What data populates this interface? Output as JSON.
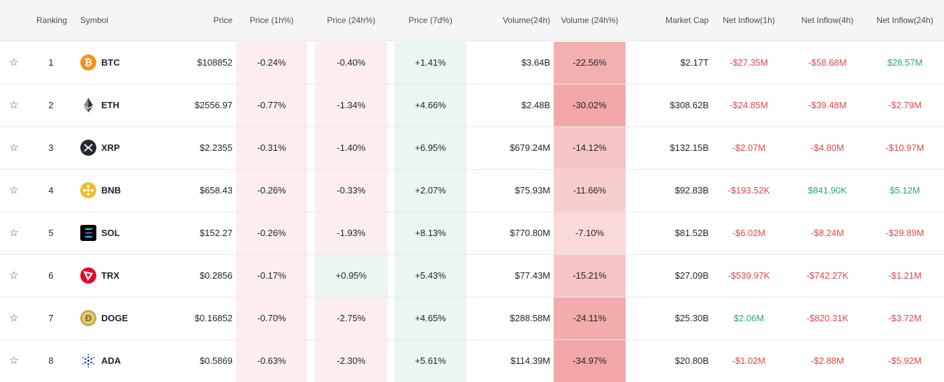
{
  "header": {
    "ranking": "Ranking",
    "symbol": "Symbol",
    "price": "Price",
    "price_1h": "Price (1h%)",
    "price_24h": "Price (24h%)",
    "price_7d": "Price (7d%)",
    "volume": "Volume(24h)",
    "volume_pct": "Volume (24h%)",
    "market_cap": "Market Cap",
    "inflow_1h": "Net Inflow(1h)",
    "inflow_4h": "Net Inflow(4h)",
    "inflow_24h": "Net Inflow(24h)"
  },
  "colors": {
    "red_text": "#e0464c",
    "green_text": "#22a884",
    "light_red_bg": "#fdeeee",
    "light_green_bg": "#eaf6ef",
    "deep_red_bg": "#f7c9c9"
  },
  "rows": [
    {
      "rank": "1",
      "symbol": "BTC",
      "icon": "bitcoin-icon",
      "price": "$108852",
      "p1h": "-0.24%",
      "p24h": "-0.40%",
      "p7d": "+1.41%",
      "volume": "$3.64B",
      "vol_pct": "-22.56%",
      "mcap": "$2.17T",
      "in1h": "-$27.35M",
      "in4h": "-$58.68M",
      "in24h": "$28.57M"
    },
    {
      "rank": "2",
      "symbol": "ETH",
      "icon": "ethereum-icon",
      "price": "$2556.97",
      "p1h": "-0.77%",
      "p24h": "-1.34%",
      "p7d": "+4.66%",
      "volume": "$2.48B",
      "vol_pct": "-30.02%",
      "mcap": "$308.62B",
      "in1h": "-$24.85M",
      "in4h": "-$39.48M",
      "in24h": "-$2.79M"
    },
    {
      "rank": "3",
      "symbol": "XRP",
      "icon": "xrp-icon",
      "price": "$2.2355",
      "p1h": "-0.31%",
      "p24h": "-1.40%",
      "p7d": "+6.95%",
      "volume": "$679.24M",
      "vol_pct": "-14.12%",
      "mcap": "$132.15B",
      "in1h": "-$2.07M",
      "in4h": "-$4.80M",
      "in24h": "-$10.97M"
    },
    {
      "rank": "4",
      "symbol": "BNB",
      "icon": "bnb-icon",
      "price": "$658.43",
      "p1h": "-0.26%",
      "p24h": "-0.33%",
      "p7d": "+2.07%",
      "volume": "$75.93M",
      "vol_pct": "-11.66%",
      "mcap": "$92.83B",
      "in1h": "-$193.52K",
      "in4h": "$841.90K",
      "in24h": "$5.12M"
    },
    {
      "rank": "5",
      "symbol": "SOL",
      "icon": "solana-icon",
      "price": "$152.27",
      "p1h": "-0.26%",
      "p24h": "-1.93%",
      "p7d": "+8.13%",
      "volume": "$770.80M",
      "vol_pct": "-7.10%",
      "mcap": "$81.52B",
      "in1h": "-$6.02M",
      "in4h": "-$8.24M",
      "in24h": "-$29.89M"
    },
    {
      "rank": "6",
      "symbol": "TRX",
      "icon": "tron-icon",
      "price": "$0.2856",
      "p1h": "-0.17%",
      "p24h": "+0.95%",
      "p7d": "+5.43%",
      "volume": "$77.43M",
      "vol_pct": "-15.21%",
      "mcap": "$27.09B",
      "in1h": "-$539.97K",
      "in4h": "-$742.27K",
      "in24h": "-$1.21M"
    },
    {
      "rank": "7",
      "symbol": "DOGE",
      "icon": "dogecoin-icon",
      "price": "$0.16852",
      "p1h": "-0.70%",
      "p24h": "-2.75%",
      "p7d": "+4.65%",
      "volume": "$288.58M",
      "vol_pct": "-24.11%",
      "mcap": "$25.30B",
      "in1h": "$2.06M",
      "in4h": "-$820.31K",
      "in24h": "-$3.72M"
    },
    {
      "rank": "8",
      "symbol": "ADA",
      "icon": "cardano-icon",
      "price": "$0.5869",
      "p1h": "-0.63%",
      "p24h": "-2.30%",
      "p7d": "+5.61%",
      "volume": "$114.39M",
      "vol_pct": "-34.97%",
      "mcap": "$20.80B",
      "in1h": "-$1.02M",
      "in4h": "-$2.88M",
      "in24h": "-$5.92M"
    }
  ]
}
